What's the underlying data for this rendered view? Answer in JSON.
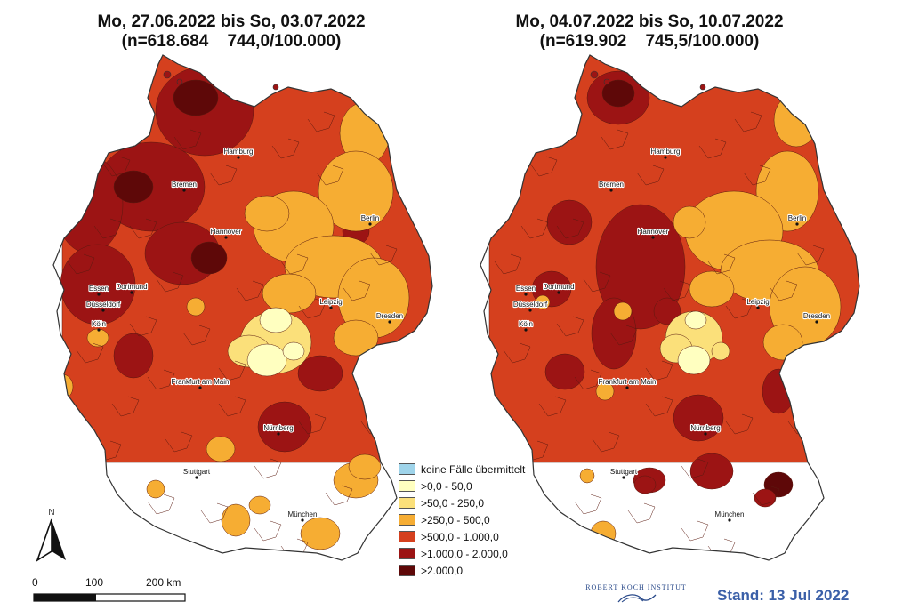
{
  "maps": [
    {
      "title_line1": "Mo, 27.06.2022 bis So, 03.07.2022",
      "title_line2": "(n=618.684    744,0/100.000)"
    },
    {
      "title_line1": "Mo, 04.07.2022 bis So, 10.07.2022",
      "title_line2": "(n=619.902    745,5/100.000)"
    }
  ],
  "cities": [
    "Hamburg",
    "Bremen",
    "Berlin",
    "Hannover",
    "Essen",
    "Dortmund",
    "Düsseldorf",
    "Köln",
    "Leipzig",
    "Dresden",
    "Frankfurt am Main",
    "Nürnberg",
    "Stuttgart",
    "München"
  ],
  "legend": [
    {
      "label": "keine Fälle übermittelt",
      "color": "#9fd4ea"
    },
    {
      "label": ">0,0 - 50,0",
      "color": "#ffffc0"
    },
    {
      "label": ">50,0 - 250,0",
      "color": "#fbe07a"
    },
    {
      "label": ">250,0 - 500,0",
      "color": "#f6ad33"
    },
    {
      "label": ">500,0 - 1.000,0",
      "color": "#d5401e"
    },
    {
      "label": ">1.000,0 - 2.000,0",
      "color": "#9c1414"
    },
    {
      "label": ">2.000,0",
      "color": "#5e0808"
    }
  ],
  "scale_bar": {
    "labels": [
      "0",
      "100",
      "200 km"
    ]
  },
  "north_arrow_label": "N",
  "institute": "ROBERT KOCH INSTITUT",
  "stand": "Stand: 13 Jul 2022"
}
